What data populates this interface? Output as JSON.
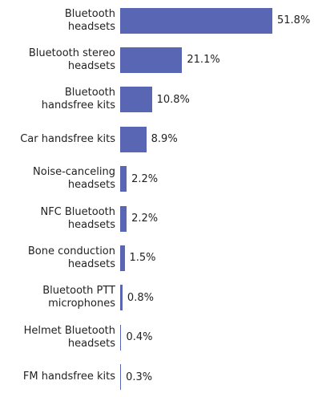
{
  "chart_data": {
    "type": "bar",
    "orientation": "horizontal",
    "categories": [
      "Bluetooth\nheadsets",
      "Bluetooth stereo\nheadsets",
      "Bluetooth\nhandsfree kits",
      "Car handsfree kits",
      "Noise-canceling\nheadsets",
      "NFC Bluetooth\nheadsets",
      "Bone conduction\nheadsets",
      "Bluetooth PTT\nmicrophones",
      "Helmet Bluetooth\nheadsets",
      "FM handsfree kits"
    ],
    "values": [
      51.8,
      21.1,
      10.8,
      8.9,
      2.2,
      2.2,
      1.5,
      0.8,
      0.4,
      0.3
    ],
    "value_labels": [
      "51.8%",
      "21.1%",
      "10.8%",
      "8.9%",
      "2.2%",
      "2.2%",
      "1.5%",
      "0.8%",
      "0.4%",
      "0.3%"
    ],
    "color": "#5866b4"
  }
}
